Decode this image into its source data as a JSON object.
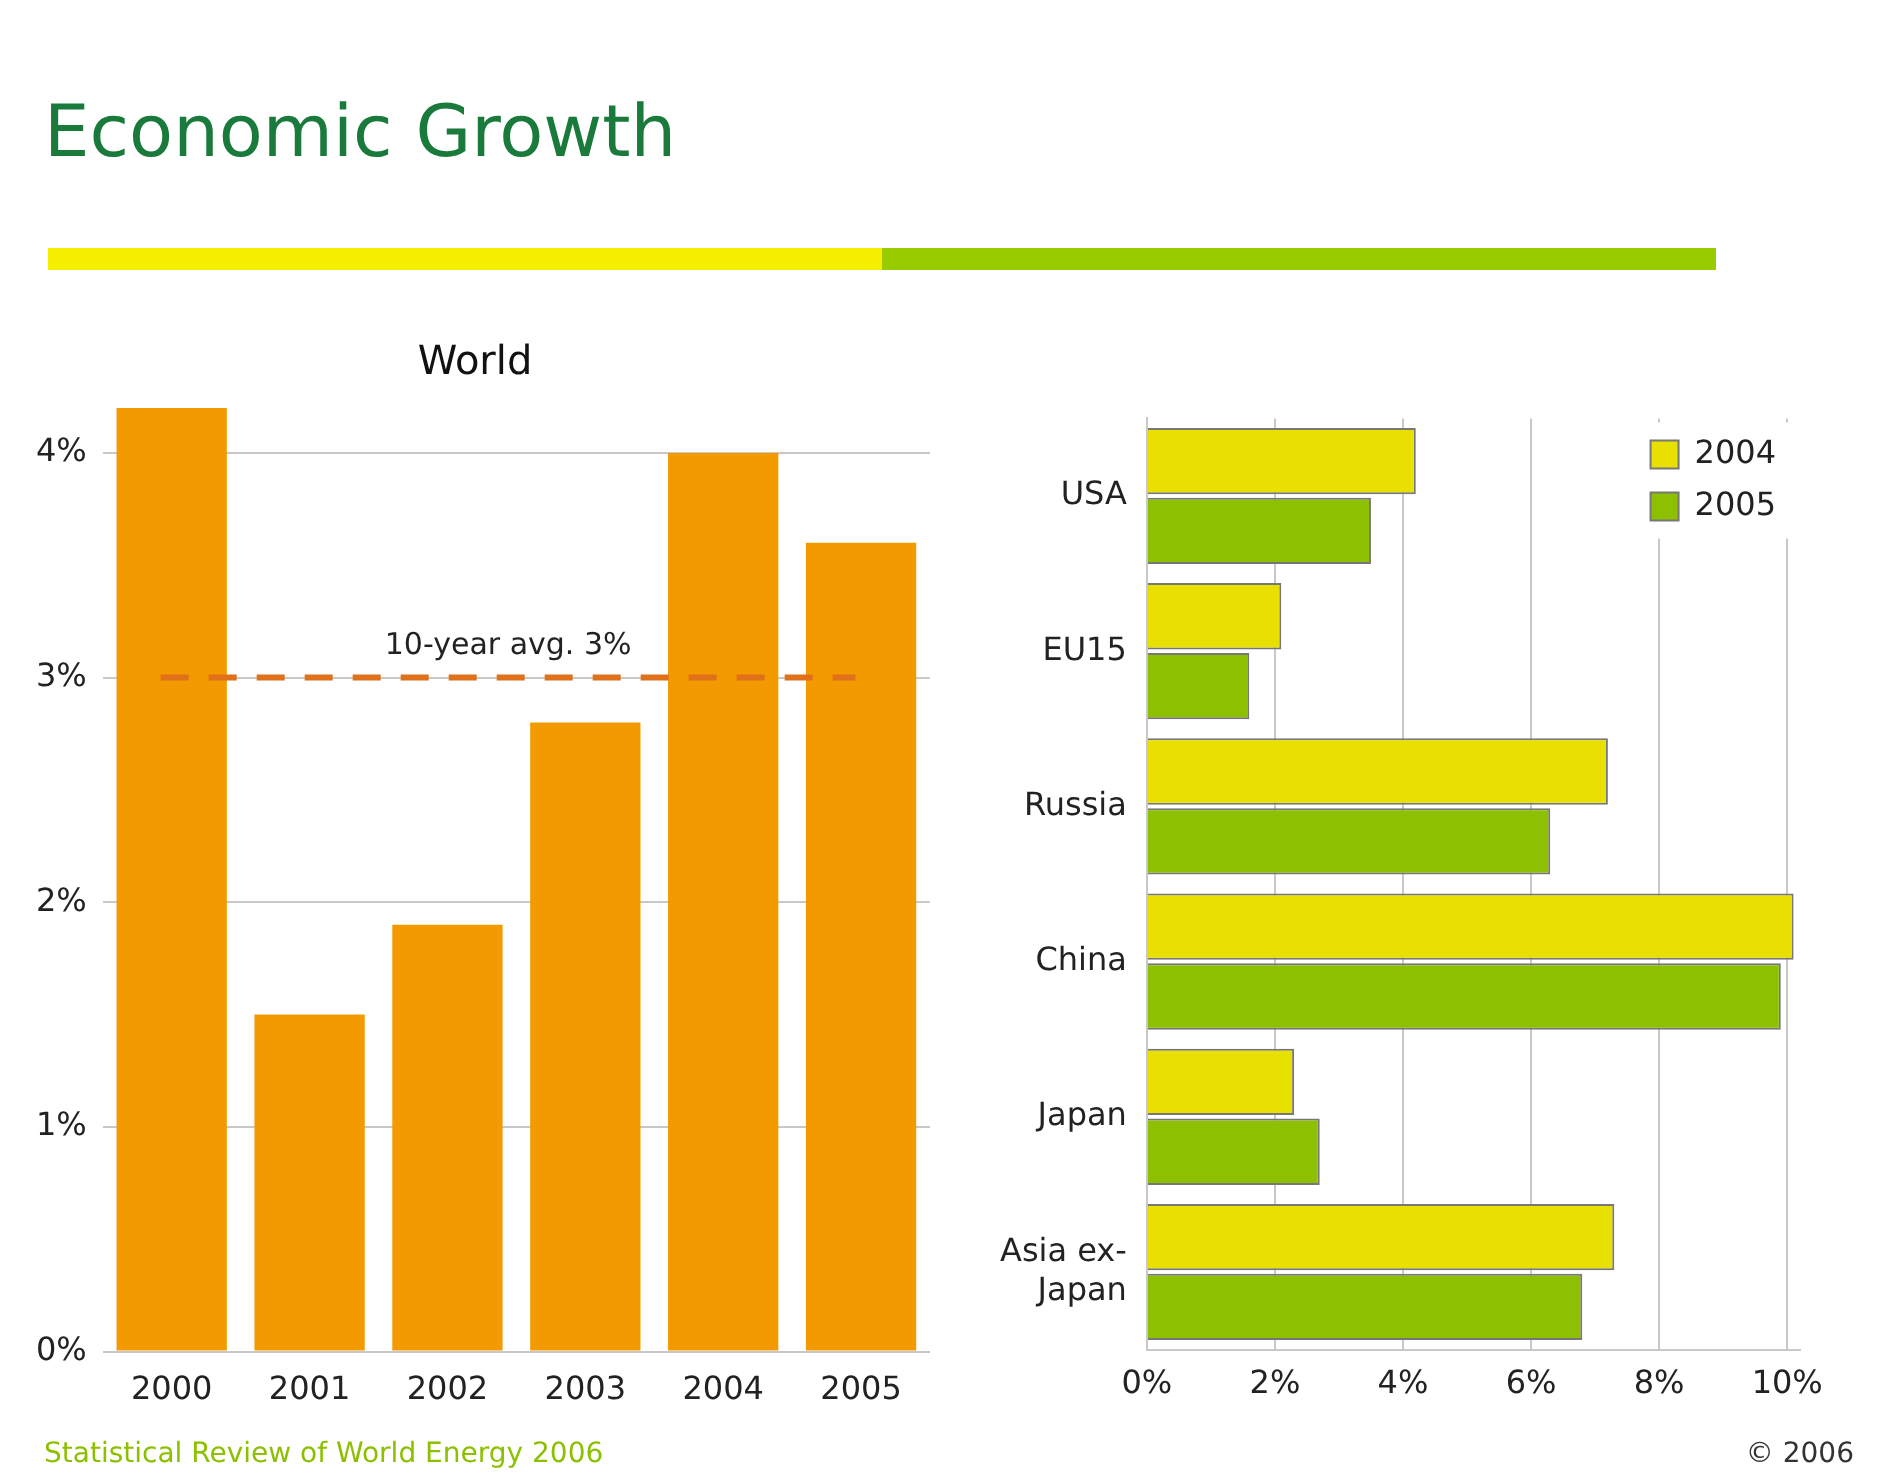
{
  "chart_data": [
    {
      "type": "other",
      "title": "Economic Growth",
      "annotations": [
        "Statistical Review of World Energy 2006",
        "© 2006"
      ]
    },
    {
      "type": "bar",
      "title": "World",
      "categories": [
        "2000",
        "2001",
        "2002",
        "2003",
        "2004",
        "2005"
      ],
      "values": [
        4.2,
        1.5,
        1.9,
        2.8,
        4.0,
        3.6
      ],
      "color": "#f39a00",
      "ylim": [
        0,
        4.2
      ],
      "yticks": [
        {
          "value": 0,
          "label": "0%"
        },
        {
          "value": 1,
          "label": "1%"
        },
        {
          "value": 2,
          "label": "2%"
        },
        {
          "value": 3,
          "label": "3%"
        },
        {
          "value": 4,
          "label": "4%"
        }
      ],
      "grid": "y",
      "ref_lines": [
        {
          "axis": "y",
          "value": 3,
          "label": "10-year avg. 3%",
          "color": "#e0701a",
          "line_style": "dashed"
        }
      ]
    },
    {
      "type": "bar",
      "orientation": "horizontal",
      "categories": [
        "USA",
        "EU15",
        "Russia",
        "China",
        "Japan",
        "Asia ex-Japan"
      ],
      "series": [
        {
          "name": "2004",
          "color": "#e8e000",
          "values": [
            4.2,
            2.1,
            7.2,
            10.1,
            2.3,
            7.3
          ]
        },
        {
          "name": "2005",
          "color": "#8cc000",
          "values": [
            3.5,
            1.6,
            6.3,
            9.9,
            2.7,
            6.8
          ]
        }
      ],
      "xlim": [
        0,
        10.2
      ],
      "xticks": [
        {
          "value": 0,
          "label": "0%"
        },
        {
          "value": 2,
          "label": "2%"
        },
        {
          "value": 4,
          "label": "4%"
        },
        {
          "value": 6,
          "label": "6%"
        },
        {
          "value": 8,
          "label": "8%"
        },
        {
          "value": 10,
          "label": "10%"
        }
      ],
      "grid": "x",
      "legend": "top right"
    }
  ]
}
